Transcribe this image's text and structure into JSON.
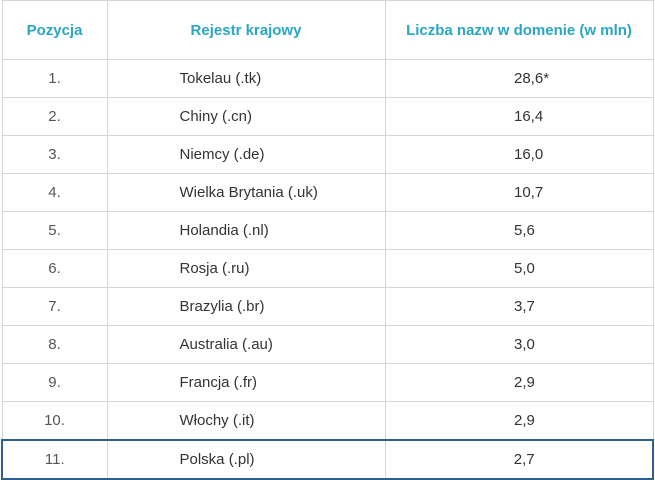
{
  "table": {
    "headers": [
      "Pozycja",
      "Rejestr krajowy",
      "Liczba nazw w domenie (w mln)"
    ],
    "rows": [
      {
        "pos": "1.",
        "name": "Tokelau (.tk)",
        "value": "28,6*"
      },
      {
        "pos": "2.",
        "name": "Chiny (.cn)",
        "value": "16,4"
      },
      {
        "pos": "3.",
        "name": "Niemcy (.de)",
        "value": "16,0"
      },
      {
        "pos": "4.",
        "name": "Wielka Brytania (.uk)",
        "value": "10,7"
      },
      {
        "pos": "5.",
        "name": "Holandia (.nl)",
        "value": "5,6"
      },
      {
        "pos": "6.",
        "name": "Rosja (.ru)",
        "value": "5,0"
      },
      {
        "pos": "7.",
        "name": "Brazylia (.br)",
        "value": "3,7"
      },
      {
        "pos": "8.",
        "name": "Australia (.au)",
        "value": "3,0"
      },
      {
        "pos": "9.",
        "name": "Francja (.fr)",
        "value": "2,9"
      },
      {
        "pos": "10.",
        "name": "Włochy (.it)",
        "value": "2,9"
      },
      {
        "pos": "11.",
        "name": "Polska (.pl)",
        "value": "2,7"
      }
    ]
  },
  "colors": {
    "header_text": "#2aa6c4",
    "highlight_border": "#2f5f8f",
    "grid": "#d6d6d6"
  }
}
